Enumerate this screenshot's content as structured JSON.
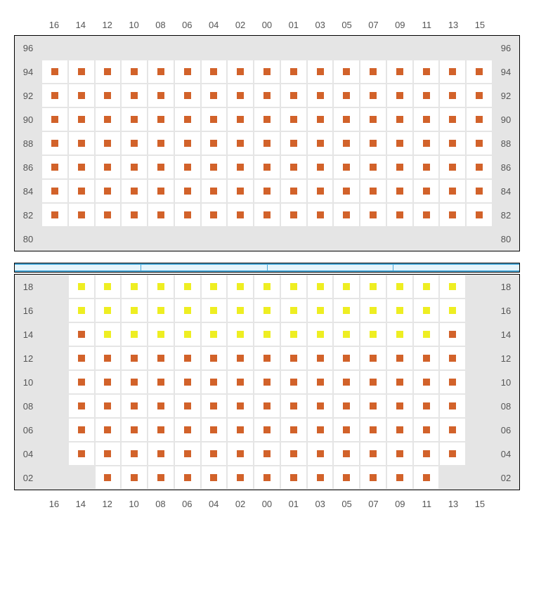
{
  "chart": {
    "type": "seating-chart",
    "background_color": "#ffffff",
    "unavailable_color": "#e5e5e5",
    "cell_border_color": "#e5e5e5",
    "section_border_color": "#000000",
    "label_color": "#555555",
    "label_fontsize": 13,
    "seat_colors": {
      "orange": "#d2622a",
      "yellow": "#eeee22"
    },
    "columns": [
      "16",
      "14",
      "12",
      "10",
      "08",
      "06",
      "04",
      "02",
      "00",
      "01",
      "03",
      "05",
      "07",
      "09",
      "11",
      "13",
      "15"
    ],
    "upper_section": {
      "rows": [
        "96",
        "94",
        "92",
        "90",
        "88",
        "86",
        "84",
        "82",
        "80"
      ],
      "grid": [
        [
          "u",
          "u",
          "u",
          "u",
          "u",
          "u",
          "u",
          "u",
          "u",
          "u",
          "u",
          "u",
          "u",
          "u",
          "u",
          "u",
          "u"
        ],
        [
          "o",
          "o",
          "o",
          "o",
          "o",
          "o",
          "o",
          "o",
          "o",
          "o",
          "o",
          "o",
          "o",
          "o",
          "o",
          "o",
          "o"
        ],
        [
          "o",
          "o",
          "o",
          "o",
          "o",
          "o",
          "o",
          "o",
          "o",
          "o",
          "o",
          "o",
          "o",
          "o",
          "o",
          "o",
          "o"
        ],
        [
          "o",
          "o",
          "o",
          "o",
          "o",
          "o",
          "o",
          "o",
          "o",
          "o",
          "o",
          "o",
          "o",
          "o",
          "o",
          "o",
          "o"
        ],
        [
          "o",
          "o",
          "o",
          "o",
          "o",
          "o",
          "o",
          "o",
          "o",
          "o",
          "o",
          "o",
          "o",
          "o",
          "o",
          "o",
          "o"
        ],
        [
          "o",
          "o",
          "o",
          "o",
          "o",
          "o",
          "o",
          "o",
          "o",
          "o",
          "o",
          "o",
          "o",
          "o",
          "o",
          "o",
          "o"
        ],
        [
          "o",
          "o",
          "o",
          "o",
          "o",
          "o",
          "o",
          "o",
          "o",
          "o",
          "o",
          "o",
          "o",
          "o",
          "o",
          "o",
          "o"
        ],
        [
          "o",
          "o",
          "o",
          "o",
          "o",
          "o",
          "o",
          "o",
          "o",
          "o",
          "o",
          "o",
          "o",
          "o",
          "o",
          "o",
          "o"
        ],
        [
          "u",
          "u",
          "u",
          "u",
          "u",
          "u",
          "u",
          "u",
          "u",
          "u",
          "u",
          "u",
          "u",
          "u",
          "u",
          "u",
          "u"
        ]
      ]
    },
    "divider": {
      "segments": 4,
      "fill_color": "#e6f5fc",
      "border_color": "#4aa8d8"
    },
    "lower_section": {
      "rows": [
        "18",
        "16",
        "14",
        "12",
        "10",
        "08",
        "06",
        "04",
        "02"
      ],
      "grid": [
        [
          "u",
          "y",
          "y",
          "y",
          "y",
          "y",
          "y",
          "y",
          "y",
          "y",
          "y",
          "y",
          "y",
          "y",
          "y",
          "y",
          "u"
        ],
        [
          "u",
          "y",
          "y",
          "y",
          "y",
          "y",
          "y",
          "y",
          "y",
          "y",
          "y",
          "y",
          "y",
          "y",
          "y",
          "y",
          "u"
        ],
        [
          "u",
          "o",
          "y",
          "y",
          "y",
          "y",
          "y",
          "y",
          "y",
          "y",
          "y",
          "y",
          "y",
          "y",
          "y",
          "o",
          "u"
        ],
        [
          "u",
          "o",
          "o",
          "o",
          "o",
          "o",
          "o",
          "o",
          "o",
          "o",
          "o",
          "o",
          "o",
          "o",
          "o",
          "o",
          "u"
        ],
        [
          "u",
          "o",
          "o",
          "o",
          "o",
          "o",
          "o",
          "o",
          "o",
          "o",
          "o",
          "o",
          "o",
          "o",
          "o",
          "o",
          "u"
        ],
        [
          "u",
          "o",
          "o",
          "o",
          "o",
          "o",
          "o",
          "o",
          "o",
          "o",
          "o",
          "o",
          "o",
          "o",
          "o",
          "o",
          "u"
        ],
        [
          "u",
          "o",
          "o",
          "o",
          "o",
          "o",
          "o",
          "o",
          "o",
          "o",
          "o",
          "o",
          "o",
          "o",
          "o",
          "o",
          "u"
        ],
        [
          "u",
          "o",
          "o",
          "o",
          "o",
          "o",
          "o",
          "o",
          "o",
          "o",
          "o",
          "o",
          "o",
          "o",
          "o",
          "o",
          "u"
        ],
        [
          "u",
          "u",
          "o",
          "o",
          "o",
          "o",
          "o",
          "o",
          "o",
          "o",
          "o",
          "o",
          "o",
          "o",
          "o",
          "u",
          "u"
        ]
      ]
    }
  }
}
